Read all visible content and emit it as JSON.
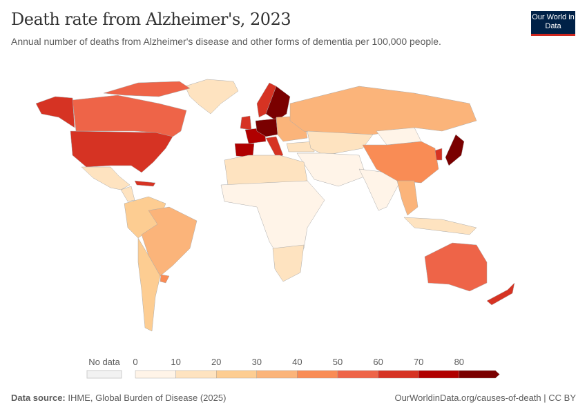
{
  "header": {
    "title": "Death rate from Alzheimer's, 2023",
    "subtitle": "Annual number of deaths from Alzheimer's disease and other forms of dementia per 100,000 people.",
    "logo": "Our World in Data"
  },
  "legend": {
    "no_data_label": "No data",
    "ticks": [
      "0",
      "10",
      "20",
      "30",
      "40",
      "50",
      "60",
      "70",
      "80"
    ],
    "bins": [
      {
        "range": "0-10",
        "color": "#fff4e8"
      },
      {
        "range": "10-20",
        "color": "#fee3c0"
      },
      {
        "range": "20-30",
        "color": "#fdcd92"
      },
      {
        "range": "30-40",
        "color": "#fbb47a"
      },
      {
        "range": "40-50",
        "color": "#f98c55"
      },
      {
        "range": "50-60",
        "color": "#ee6448"
      },
      {
        "range": "60-70",
        "color": "#d63323"
      },
      {
        "range": "70-80",
        "color": "#b00000"
      },
      {
        "range": "80+",
        "color": "#7a0000"
      }
    ]
  },
  "map_regions": [
    {
      "region": "canada",
      "bin": 5
    },
    {
      "region": "alaska",
      "bin": 6
    },
    {
      "region": "greenland",
      "bin": 1
    },
    {
      "region": "usa",
      "bin": 6
    },
    {
      "region": "mexico",
      "bin": 1
    },
    {
      "region": "central-america",
      "bin": 1
    },
    {
      "region": "caribbean",
      "bin": 6
    },
    {
      "region": "south-america-north",
      "bin": 2
    },
    {
      "region": "brazil",
      "bin": 3
    },
    {
      "region": "argentina-chile",
      "bin": 2
    },
    {
      "region": "uruguay",
      "bin": 4
    },
    {
      "region": "scandinavia",
      "bin": 6
    },
    {
      "region": "finland-sweden",
      "bin": 8
    },
    {
      "region": "uk-ireland",
      "bin": 6
    },
    {
      "region": "france",
      "bin": 7
    },
    {
      "region": "spain-portugal",
      "bin": 7
    },
    {
      "region": "central-europe",
      "bin": 8
    },
    {
      "region": "italy",
      "bin": 6
    },
    {
      "region": "eastern-europe",
      "bin": 3
    },
    {
      "region": "turkey",
      "bin": 1
    },
    {
      "region": "russia",
      "bin": 3
    },
    {
      "region": "central-asia",
      "bin": 1
    },
    {
      "region": "middle-east",
      "bin": 0
    },
    {
      "region": "north-africa",
      "bin": 1
    },
    {
      "region": "africa",
      "bin": 0
    },
    {
      "region": "southern-africa",
      "bin": 1
    },
    {
      "region": "india",
      "bin": 0
    },
    {
      "region": "china",
      "bin": 4
    },
    {
      "region": "mongolia",
      "bin": 0
    },
    {
      "region": "japan",
      "bin": 8
    },
    {
      "region": "korea",
      "bin": 6
    },
    {
      "region": "southeast-asia",
      "bin": 3
    },
    {
      "region": "indonesia",
      "bin": 1
    },
    {
      "region": "australia",
      "bin": 5
    },
    {
      "region": "new-zealand",
      "bin": 6
    },
    {
      "region": "arctic-canada",
      "bin": 5
    }
  ],
  "footer": {
    "source_label": "Data source:",
    "source": "IHME, Global Burden of Disease (2025)",
    "url": "OurWorldinData.org/causes-of-death | CC BY"
  }
}
